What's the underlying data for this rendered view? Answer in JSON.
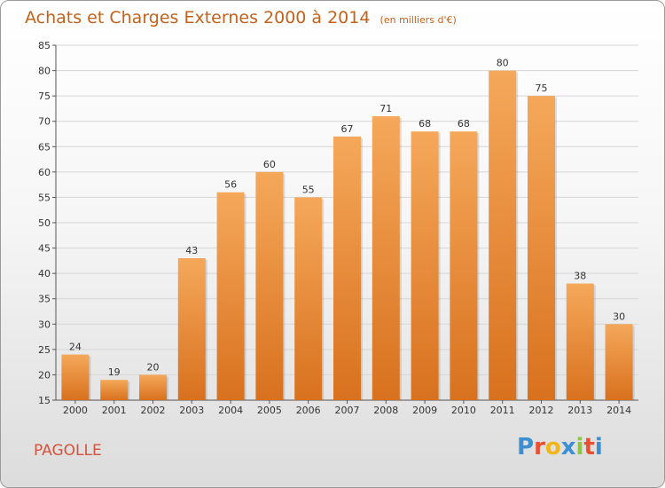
{
  "header": {
    "title": "Achats et Charges Externes 2000 à 2014",
    "unit": "(en milliers d'€)"
  },
  "footer": {
    "commune": "PAGOLLE",
    "logo_letters": [
      "P",
      "r",
      "o",
      "x",
      "i",
      "t",
      "i"
    ],
    "logo_colors": [
      "#3c8fd0",
      "#e8502e",
      "#f2b51a",
      "#3c8fd0",
      "#8dc63f",
      "#e8502e",
      "#3c8fd0"
    ]
  },
  "chart_data": {
    "type": "bar",
    "title": "Achats et Charges Externes 2000 à 2014",
    "subtitle": "(en milliers d'€)",
    "categories": [
      "2000",
      "2001",
      "2002",
      "2003",
      "2004",
      "2005",
      "2006",
      "2007",
      "2008",
      "2009",
      "2010",
      "2011",
      "2012",
      "2013",
      "2014"
    ],
    "values": [
      24,
      19,
      20,
      43,
      56,
      60,
      55,
      67,
      71,
      68,
      68,
      80,
      75,
      38,
      30
    ],
    "ylim": [
      15,
      85
    ],
    "yticks": [
      15,
      20,
      25,
      30,
      35,
      40,
      45,
      50,
      55,
      60,
      65,
      70,
      75,
      80,
      85
    ],
    "grid": true,
    "bar_color_top": "#f5a85a",
    "bar_color_bottom": "#d8711e"
  }
}
